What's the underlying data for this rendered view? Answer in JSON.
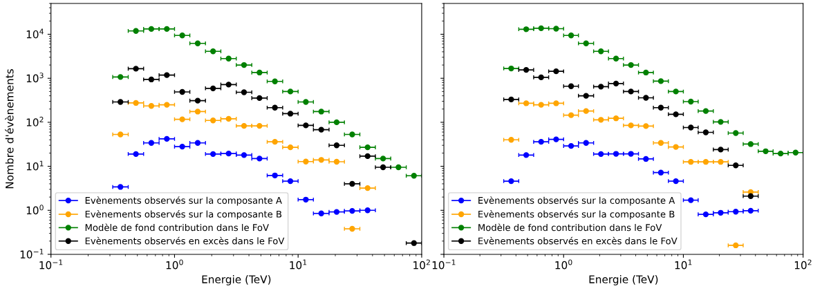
{
  "chart_data": [
    {
      "type": "scatter",
      "xlabel": "Energie (TeV)",
      "ylabel": "Nombre d'évènements",
      "log": "xy",
      "xlim": [
        0.1,
        100
      ],
      "ylim": [
        0.1,
        50000
      ],
      "xticks": [
        {
          "value": 0.1,
          "label": "10$^{−1}$"
        },
        {
          "value": 1,
          "label": "10$^{0}$"
        },
        {
          "value": 10,
          "label": "10$^{1}$"
        },
        {
          "value": 100,
          "label": "10$^{2}$"
        }
      ],
      "yticks": [
        {
          "value": 0.1,
          "label": "10$^{−1}$"
        },
        {
          "value": 1,
          "label": "10$^{0}$"
        },
        {
          "value": 10,
          "label": "10$^{1}$"
        },
        {
          "value": 100,
          "label": "10$^{2}$"
        },
        {
          "value": 1000,
          "label": "10$^{3}$"
        },
        {
          "value": 10000,
          "label": "10$^{4}$"
        }
      ],
      "x": [
        0.365,
        0.487,
        0.649,
        0.866,
        1.155,
        1.54,
        2.05,
        2.74,
        3.65,
        4.87,
        6.49,
        8.66,
        11.55,
        15.4,
        20.5,
        27.4,
        36.5,
        48.7,
        64.9,
        86.6
      ],
      "grid": false,
      "legend": "bottom left",
      "marker": "circle",
      "series": [
        {
          "name": "Evènements observés sur la composante A",
          "color": "#0000ff",
          "values": [
            3.4,
            19,
            34,
            42,
            28,
            34,
            19,
            19.5,
            18,
            15,
            6.2,
            4.6,
            1.75,
            0.85,
            0.92,
            0.97,
            1.0,
            null,
            null,
            null
          ],
          "xerrors": [
            [
              0.316,
              0.422
            ],
            [
              0.422,
              0.562
            ],
            [
              0.562,
              0.75
            ],
            [
              0.75,
              1.0
            ],
            [
              1.0,
              1.33
            ],
            [
              1.33,
              1.78
            ],
            [
              1.78,
              2.37
            ],
            [
              2.37,
              3.16
            ],
            [
              3.16,
              4.22
            ],
            [
              4.22,
              5.62
            ],
            [
              5.62,
              7.5
            ],
            [
              7.5,
              10
            ],
            [
              10,
              13.3
            ],
            [
              13.3,
              17.8
            ],
            [
              17.8,
              23.7
            ],
            [
              23.7,
              31.6
            ],
            [
              31.6,
              42.2
            ],
            null,
            null,
            null
          ]
        },
        {
          "name": "Evènements observés sur la composante B",
          "color": "#ffa500",
          "values": [
            53,
            275,
            235,
            250,
            117,
            175,
            110,
            120,
            83,
            83,
            36,
            27,
            12.8,
            14,
            12.7,
            0.38,
            3.2,
            null,
            null,
            null
          ],
          "xerrors": [
            [
              0.316,
              0.422
            ],
            [
              0.422,
              0.562
            ],
            [
              0.562,
              0.75
            ],
            [
              0.75,
              1.0
            ],
            [
              1.0,
              1.33
            ],
            [
              1.33,
              1.78
            ],
            [
              1.78,
              2.37
            ],
            [
              2.37,
              3.16
            ],
            [
              3.16,
              4.22
            ],
            [
              4.22,
              5.62
            ],
            [
              5.62,
              7.5
            ],
            [
              7.5,
              10
            ],
            [
              10,
              13.3
            ],
            [
              13.3,
              17.8
            ],
            [
              17.8,
              23.7
            ],
            [
              23.7,
              31.6
            ],
            [
              31.6,
              42.2
            ],
            null,
            null,
            null
          ]
        },
        {
          "name": "Modèle de fond contribution dans le FoV",
          "color": "#008000",
          "values": [
            1070,
            11900,
            13200,
            13200,
            9400,
            6200,
            4100,
            2800,
            2000,
            1350,
            850,
            500,
            290,
            175,
            100,
            53,
            27,
            15,
            9.5,
            6.1
          ],
          "xerrors": [
            [
              0.316,
              0.422
            ],
            [
              0.422,
              0.562
            ],
            [
              0.562,
              0.75
            ],
            [
              0.75,
              1.0
            ],
            [
              1.0,
              1.33
            ],
            [
              1.33,
              1.78
            ],
            [
              1.78,
              2.37
            ],
            [
              2.37,
              3.16
            ],
            [
              3.16,
              4.22
            ],
            [
              4.22,
              5.62
            ],
            [
              5.62,
              7.5
            ],
            [
              7.5,
              10
            ],
            [
              10,
              13.3
            ],
            [
              13.3,
              17.8
            ],
            [
              17.8,
              23.7
            ],
            [
              23.7,
              31.6
            ],
            [
              31.6,
              42.2
            ],
            [
              42.2,
              56.2
            ],
            [
              56.2,
              75
            ],
            [
              75,
              100
            ]
          ]
        },
        {
          "name": "Evènements observés en excès dans le FoV",
          "color": "#000000",
          "values": [
            290,
            1650,
            940,
            1180,
            490,
            310,
            590,
            720,
            480,
            355,
            215,
            157,
            85,
            68,
            30,
            4.0,
            17,
            9.5,
            null,
            0.18
          ],
          "xerrors": [
            [
              0.316,
              0.422
            ],
            [
              0.422,
              0.562
            ],
            [
              0.562,
              0.75
            ],
            [
              0.75,
              1.0
            ],
            [
              1.0,
              1.33
            ],
            [
              1.33,
              1.78
            ],
            [
              1.78,
              2.37
            ],
            [
              2.37,
              3.16
            ],
            [
              3.16,
              4.22
            ],
            [
              4.22,
              5.62
            ],
            [
              5.62,
              7.5
            ],
            [
              7.5,
              10
            ],
            [
              10,
              13.3
            ],
            [
              13.3,
              17.8
            ],
            [
              17.8,
              23.7
            ],
            [
              23.7,
              31.6
            ],
            [
              31.6,
              42.2
            ],
            [
              42.2,
              56.2
            ],
            null,
            [
              75,
              100
            ]
          ]
        }
      ]
    },
    {
      "type": "scatter",
      "xlabel": "Energie (TeV)",
      "log": "xy",
      "xlim": [
        0.1,
        100
      ],
      "ylim": [
        0.1,
        50000
      ],
      "tick_labels": "x",
      "xticks": [
        {
          "value": 0.1,
          "label": "10$^{−1}$"
        },
        {
          "value": 1,
          "label": "10$^{0}$"
        },
        {
          "value": 10,
          "label": "10$^{1}$"
        },
        {
          "value": 100,
          "label": "10$^{2}$"
        }
      ],
      "yticks": [
        {
          "value": 0.1,
          "label": null
        },
        {
          "value": 1,
          "label": null
        },
        {
          "value": 10,
          "label": null
        },
        {
          "value": 100,
          "label": null
        },
        {
          "value": 1000,
          "label": null
        },
        {
          "value": 10000,
          "label": null
        }
      ],
      "x": [
        0.365,
        0.487,
        0.649,
        0.866,
        1.155,
        1.54,
        2.05,
        2.74,
        3.65,
        4.87,
        6.49,
        8.66,
        11.55,
        15.4,
        20.5,
        27.4,
        36.5,
        48.7,
        64.9,
        86.6
      ],
      "grid": false,
      "legend": "bottom left",
      "marker": "circle",
      "series": [
        {
          "name": "Evènements observés sur la composante A",
          "color": "#0000ff",
          "values": [
            4.6,
            18,
            36,
            41,
            29,
            34,
            19,
            19.2,
            19.2,
            14.7,
            7.2,
            4.6,
            1.7,
            0.81,
            0.88,
            0.93,
            0.98,
            null,
            null,
            null
          ],
          "xerrors": [
            [
              0.316,
              0.422
            ],
            [
              0.422,
              0.562
            ],
            [
              0.562,
              0.75
            ],
            [
              0.75,
              1.0
            ],
            [
              1.0,
              1.33
            ],
            [
              1.33,
              1.78
            ],
            [
              1.78,
              2.37
            ],
            [
              2.37,
              3.16
            ],
            [
              3.16,
              4.22
            ],
            [
              4.22,
              5.62
            ],
            [
              5.62,
              7.5
            ],
            [
              7.5,
              10
            ],
            [
              10,
              13.3
            ],
            [
              13.3,
              17.8
            ],
            [
              17.8,
              23.7
            ],
            [
              23.7,
              31.6
            ],
            [
              31.6,
              42.2
            ],
            null,
            null,
            null
          ]
        },
        {
          "name": "Evènements observés sur la composante B",
          "color": "#ffa500",
          "values": [
            40,
            270,
            250,
            270,
            145,
            180,
            114,
            123,
            85,
            82,
            34,
            27.5,
            12.6,
            12.6,
            12.6,
            0.16,
            2.6,
            null,
            null,
            null
          ],
          "xerrors": [
            [
              0.316,
              0.422
            ],
            [
              0.422,
              0.562
            ],
            [
              0.562,
              0.75
            ],
            [
              0.75,
              1.0
            ],
            [
              1.0,
              1.33
            ],
            [
              1.33,
              1.78
            ],
            [
              1.78,
              2.37
            ],
            [
              2.37,
              3.16
            ],
            [
              3.16,
              4.22
            ],
            [
              4.22,
              5.62
            ],
            [
              5.62,
              7.5
            ],
            [
              7.5,
              10
            ],
            [
              10,
              13.3
            ],
            [
              13.3,
              17.8
            ],
            [
              17.8,
              23.7
            ],
            [
              23.7,
              31.6
            ],
            [
              31.6,
              42.2
            ],
            null,
            null,
            null
          ]
        },
        {
          "name": "Modèle de fond contribution dans le FoV",
          "color": "#008000",
          "values": [
            1670,
            13000,
            13700,
            13400,
            9400,
            6200,
            4100,
            2800,
            2000,
            1350,
            860,
            500,
            295,
            180,
            102,
            57,
            32,
            22,
            19.5,
            20.5
          ],
          "xerrors": [
            [
              0.316,
              0.422
            ],
            [
              0.422,
              0.562
            ],
            [
              0.562,
              0.75
            ],
            [
              0.75,
              1.0
            ],
            [
              1.0,
              1.33
            ],
            [
              1.33,
              1.78
            ],
            [
              1.78,
              2.37
            ],
            [
              2.37,
              3.16
            ],
            [
              3.16,
              4.22
            ],
            [
              4.22,
              5.62
            ],
            [
              5.62,
              7.5
            ],
            [
              7.5,
              10
            ],
            [
              10,
              13.3
            ],
            [
              13.3,
              17.8
            ],
            [
              17.8,
              23.7
            ],
            [
              23.7,
              31.6
            ],
            [
              31.6,
              42.2
            ],
            [
              42.2,
              56.2
            ],
            [
              56.2,
              75
            ],
            [
              75,
              100
            ]
          ]
        },
        {
          "name": "Evènements observés en excès dans le FoV",
          "color": "#000000",
          "values": [
            330,
            1550,
            1050,
            1440,
            660,
            400,
            645,
            760,
            500,
            360,
            215,
            152,
            76,
            59,
            24,
            10.5,
            2.1,
            null,
            null,
            null
          ],
          "xerrors": [
            [
              0.316,
              0.422
            ],
            [
              0.422,
              0.562
            ],
            [
              0.562,
              0.75
            ],
            [
              0.75,
              1.0
            ],
            [
              1.0,
              1.33
            ],
            [
              1.33,
              1.78
            ],
            [
              1.78,
              2.37
            ],
            [
              2.37,
              3.16
            ],
            [
              3.16,
              4.22
            ],
            [
              4.22,
              5.62
            ],
            [
              5.62,
              7.5
            ],
            [
              7.5,
              10
            ],
            [
              10,
              13.3
            ],
            [
              13.3,
              17.8
            ],
            [
              17.8,
              23.7
            ],
            [
              23.7,
              31.6
            ],
            [
              31.6,
              42.2
            ],
            null,
            null,
            null
          ]
        }
      ]
    }
  ]
}
